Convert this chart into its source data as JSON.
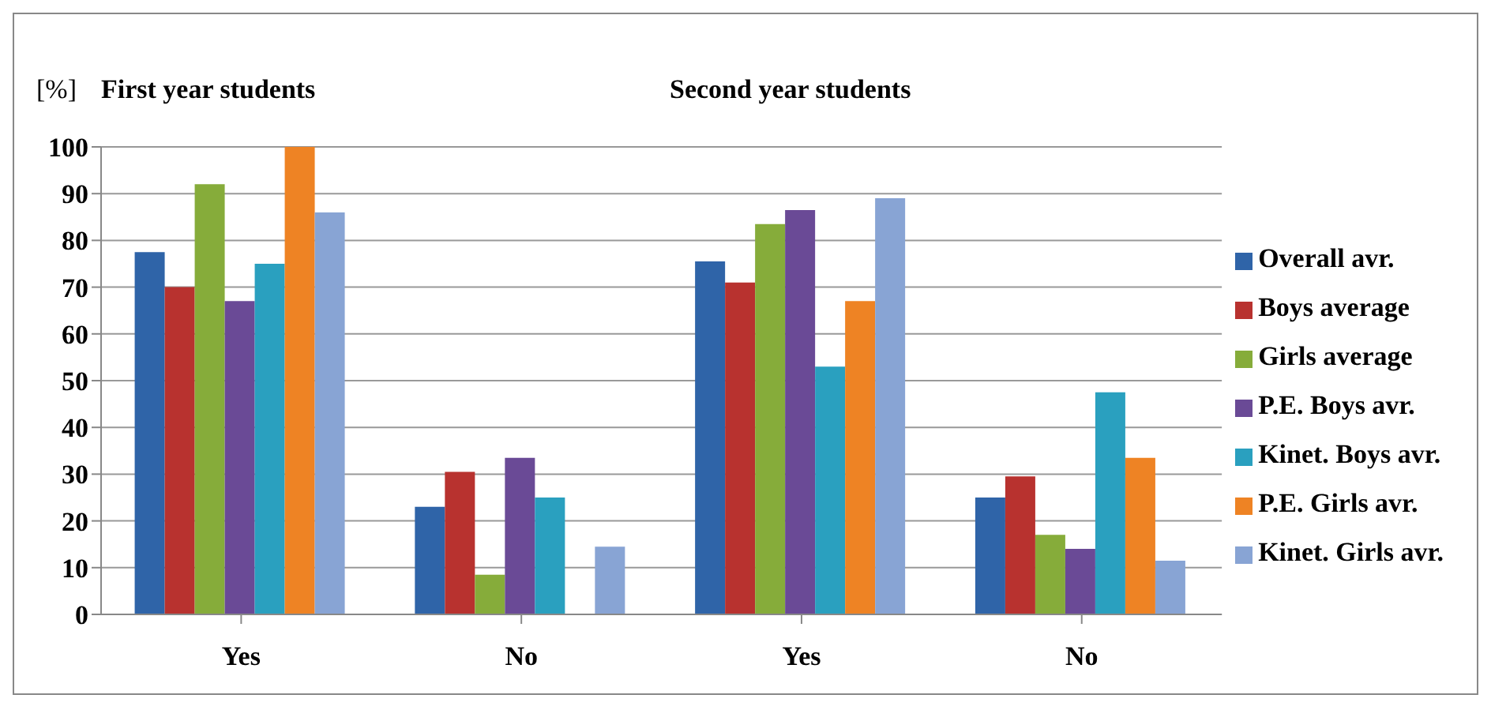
{
  "chart_data": {
    "type": "bar",
    "ylabel": "[%]",
    "annotations": [
      "First year students",
      "Second year students"
    ],
    "categories": [
      "Yes",
      "No",
      "Yes",
      "No"
    ],
    "series": [
      {
        "name": "Overall avr.",
        "color": "#2f64a8",
        "values": [
          77.5,
          23,
          75.5,
          25
        ]
      },
      {
        "name": "Boys average",
        "color": "#b8322f",
        "values": [
          70,
          30.5,
          71,
          29.5
        ]
      },
      {
        "name": "Girls average",
        "color": "#86ac3a",
        "values": [
          92,
          8.5,
          83.5,
          17
        ]
      },
      {
        "name": "P.E. Boys avr.",
        "color": "#6a4a96",
        "values": [
          67,
          33.5,
          86.5,
          14
        ]
      },
      {
        "name": "Kinet. Boys avr.",
        "color": "#2aa0bf",
        "values": [
          75,
          25,
          53,
          47.5
        ]
      },
      {
        "name": "P.E. Girls avr.",
        "color": "#ee8324",
        "values": [
          100,
          0,
          67,
          33.5
        ]
      },
      {
        "name": "Kinet. Girls avr.",
        "color": "#88a4d4",
        "values": [
          86,
          14.5,
          89,
          11.5
        ]
      }
    ],
    "ylim": [
      0,
      100
    ],
    "yticks": [
      0,
      10,
      20,
      30,
      40,
      50,
      60,
      70,
      80,
      90,
      100
    ],
    "grid": "y",
    "legend": "right"
  }
}
